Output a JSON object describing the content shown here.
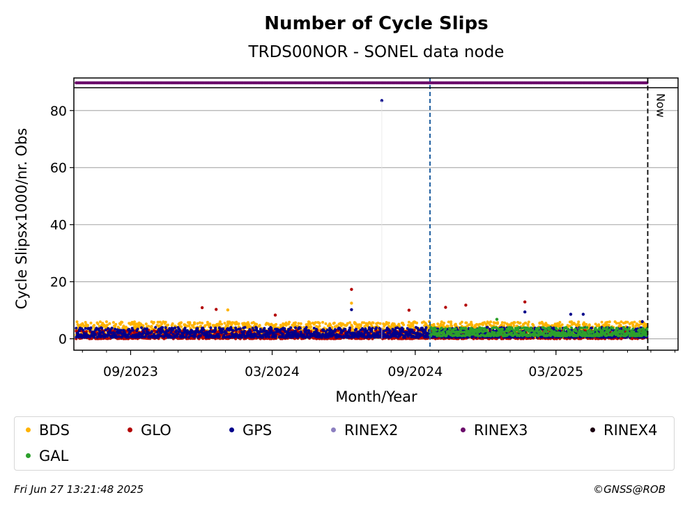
{
  "chart_data": {
    "type": "scatter",
    "title": "Number of Cycle Slips",
    "subtitle": "TRDS00NOR - SONEL data node",
    "xlabel": "Month/Year",
    "ylabel": "Cycle Slipsx1000/nr. Obs",
    "x_range": [
      "2023-06-20",
      "2025-08-05"
    ],
    "ylim": [
      -4,
      88
    ],
    "y_ticks": [
      0,
      20,
      40,
      60,
      80
    ],
    "x_ticks": [
      {
        "date": "2023-09-01",
        "label": "09/2023"
      },
      {
        "date": "2024-03-01",
        "label": "03/2024"
      },
      {
        "date": "2024-09-01",
        "label": "09/2024"
      },
      {
        "date": "2025-03-01",
        "label": "03/2025"
      }
    ],
    "grid": "horizontal",
    "data_start": "2023-06-23",
    "data_end": "2025-06-26",
    "now_date": "2025-06-27",
    "now_label": "Now",
    "event_line_date": "2024-09-20",
    "rinex_band_series": "RINEX3",
    "series": [
      {
        "name": "BDS",
        "color": "#ffb300",
        "typical_range": [
          0.5,
          6
        ],
        "spikes": [
          [
            "2024-01-04",
            10.1
          ],
          [
            "2024-06-11",
            12.5
          ]
        ]
      },
      {
        "name": "GLO",
        "color": "#b30000",
        "typical_range": [
          0,
          3
        ],
        "spikes": [
          [
            "2023-12-02",
            10.9
          ],
          [
            "2023-12-20",
            10.3
          ],
          [
            "2024-03-05",
            8.3
          ],
          [
            "2024-06-11",
            17.3
          ],
          [
            "2024-08-24",
            10.0
          ],
          [
            "2024-10-10",
            11.0
          ],
          [
            "2024-11-05",
            11.8
          ],
          [
            "2025-01-20",
            12.9
          ]
        ]
      },
      {
        "name": "GPS",
        "color": "#00008b",
        "typical_range": [
          0.5,
          4
        ],
        "spikes": [
          [
            "2024-07-20",
            83.5
          ],
          [
            "2024-06-11",
            10.2
          ],
          [
            "2025-01-20",
            9.4
          ],
          [
            "2025-03-20",
            8.6
          ],
          [
            "2025-04-05",
            8.6
          ],
          [
            "2025-06-20",
            6.0
          ]
        ]
      },
      {
        "name": "GAL",
        "color": "#2ca02c",
        "typical_range": [
          1,
          4
        ],
        "spikes": [
          [
            "2024-12-15",
            6.8
          ]
        ]
      }
    ]
  },
  "legend": [
    {
      "label": "BDS",
      "color": "#ffb300"
    },
    {
      "label": "GLO",
      "color": "#b30000"
    },
    {
      "label": "GPS",
      "color": "#00008b"
    },
    {
      "label": "RINEX2",
      "color": "#8c7fc0"
    },
    {
      "label": "RINEX3",
      "color": "#6b0b6b"
    },
    {
      "label": "RINEX4",
      "color": "#1a0010"
    },
    {
      "label": "GAL",
      "color": "#2ca02c"
    }
  ],
  "footer": {
    "timestamp": "Fri Jun 27 13:21:48 2025",
    "credit": "©GNSS@ROB"
  }
}
